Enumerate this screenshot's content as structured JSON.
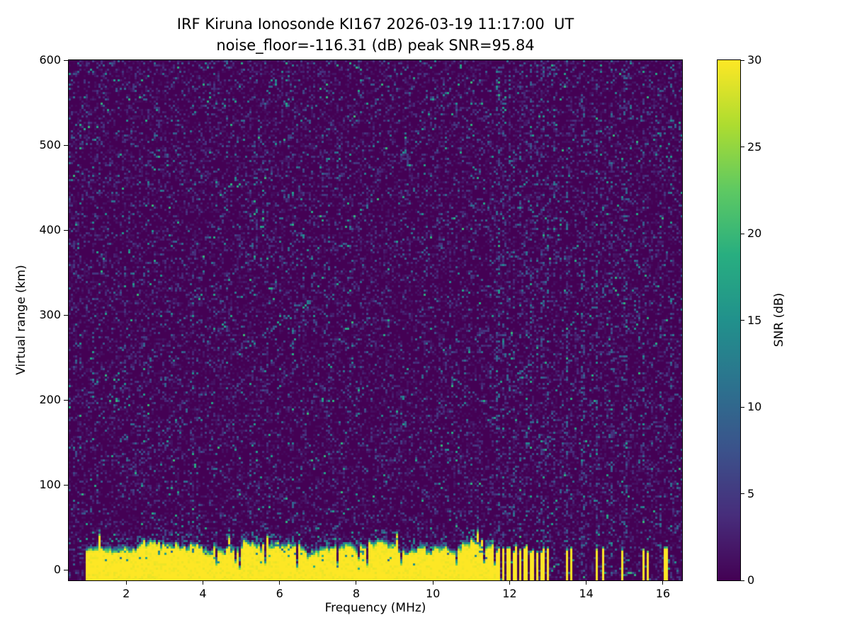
{
  "figure": {
    "title_line1": "IRF Kiruna Ionosonde KI167 2026-03-19 11:17:00  UT",
    "title_line2": "noise_floor=-116.31 (dB) peak SNR=95.84"
  },
  "chart_data": {
    "type": "heatmap",
    "title": "IRF Kiruna Ionosonde KI167 2026-03-19 11:17:00  UT",
    "subtitle": "noise_floor=-116.31 (dB) peak SNR=95.84",
    "station": "IRF Kiruna Ionosonde KI167",
    "timestamp_ut": "2026-03-19 11:17:00",
    "noise_floor_db": -116.31,
    "peak_snr_db": 95.84,
    "xlabel": "Frequency (MHz)",
    "ylabel": "Virtual range (km)",
    "colorbar_label": "SNR (dB)",
    "xlim": [
      0.5,
      16.5
    ],
    "ylim": [
      -12.5,
      600
    ],
    "clim": [
      0,
      30
    ],
    "xticks": [
      2,
      4,
      6,
      8,
      10,
      12,
      14,
      16
    ],
    "yticks": [
      0,
      100,
      200,
      300,
      400,
      500,
      600
    ],
    "colorbar_ticks": [
      0,
      5,
      10,
      15,
      20,
      25,
      30
    ],
    "colormap": "viridis",
    "colormap_stops": [
      [
        0.0,
        "#440154"
      ],
      [
        0.125,
        "#472d7b"
      ],
      [
        0.25,
        "#3b528b"
      ],
      [
        0.375,
        "#2c728e"
      ],
      [
        0.5,
        "#21918c"
      ],
      [
        0.625,
        "#28ae80"
      ],
      [
        0.75,
        "#5ec962"
      ],
      [
        0.875,
        "#addc30"
      ],
      [
        1.0,
        "#fde725"
      ]
    ],
    "background_color": "#440154",
    "features": {
      "speckle_noise": {
        "fill_fraction": 0.44,
        "max_db": 20
      },
      "ground_signal_band": {
        "freq_range": [
          0.92,
          11.62
        ],
        "bottom_km": -12.5,
        "mean_top_km": 30,
        "top_variation_km": 9,
        "notch_probability": 0.055
      },
      "stepped_bars": [
        [
          11.68,
          0.075
        ],
        [
          11.83,
          0.075
        ],
        [
          11.97,
          0.075
        ],
        [
          12.12,
          0.075
        ],
        [
          12.26,
          0.075
        ],
        [
          12.41,
          0.075
        ],
        [
          12.56,
          0.075
        ],
        [
          12.7,
          0.075
        ],
        [
          12.85,
          0.075
        ],
        [
          12.99,
          0.075
        ],
        [
          13.47,
          0.075
        ],
        [
          13.58,
          0.06
        ],
        [
          14.27,
          0.075
        ],
        [
          14.4,
          0.06
        ],
        [
          14.92,
          0.075
        ],
        [
          15.47,
          0.075
        ],
        [
          15.59,
          0.06
        ],
        [
          16.07,
          0.1
        ]
      ],
      "stepped_bar_top_km": 26,
      "rfi_columns": [
        [
          4.33,
          0.05
        ],
        [
          6.35,
          0.09
        ],
        [
          7.25,
          0.06
        ],
        [
          11.68,
          0.16
        ],
        [
          11.83,
          0.16
        ],
        [
          11.97,
          0.16
        ],
        [
          12.12,
          0.16
        ],
        [
          12.26,
          0.16
        ],
        [
          12.41,
          0.16
        ],
        [
          12.56,
          0.16
        ],
        [
          12.7,
          0.16
        ],
        [
          12.85,
          0.16
        ],
        [
          12.99,
          0.16
        ],
        [
          13.15,
          0.1
        ],
        [
          13.47,
          0.2
        ],
        [
          13.9,
          0.18
        ],
        [
          14.27,
          0.2
        ],
        [
          14.65,
          0.15
        ],
        [
          15.0,
          0.17
        ],
        [
          15.47,
          0.2
        ],
        [
          15.9,
          0.15
        ],
        [
          16.2,
          0.13
        ]
      ],
      "echo_trace": {
        "freq_range": [
          4.6,
          7.2
        ],
        "km_start": 245,
        "km_slope_per_mhz": 33,
        "dot_probability": 0.25
      }
    }
  }
}
